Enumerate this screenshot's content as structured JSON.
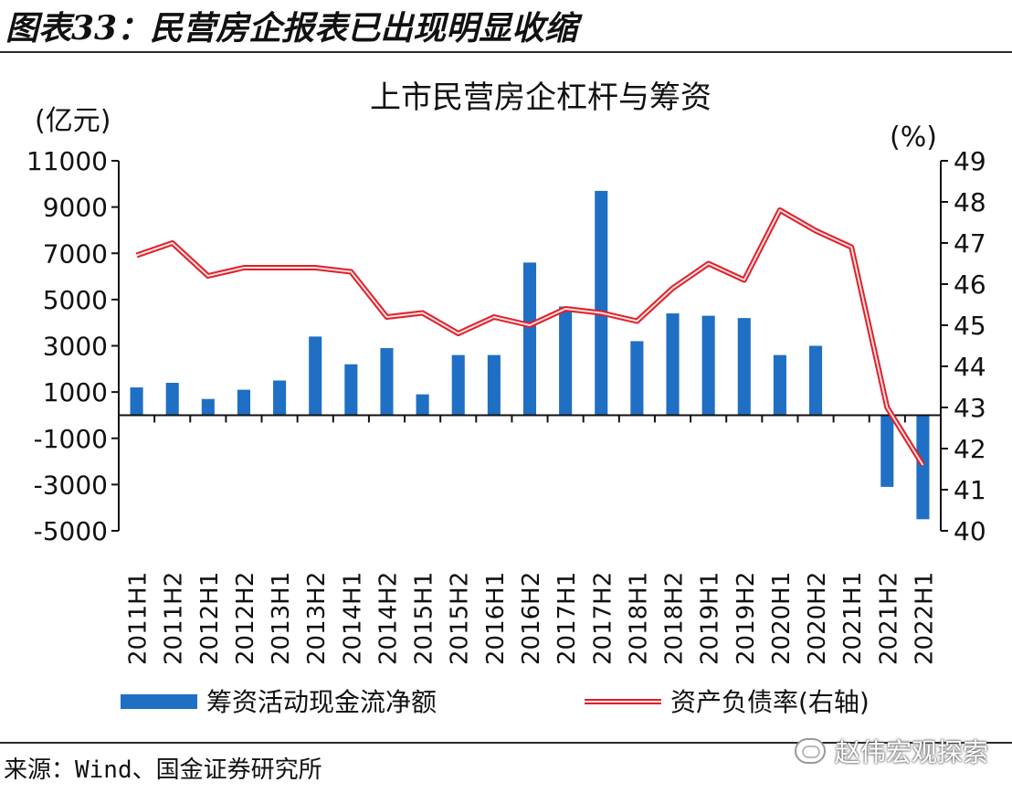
{
  "figure": {
    "title": "图表33：民营房企报表已出现明显收缩",
    "source": "来源：Wind、国金证券研究所",
    "watermark": "赵伟宏观探索"
  },
  "chart_data": {
    "type": "bar",
    "title": "上市民营房企杠杆与筹资",
    "left_axis_label": "(亿元)",
    "right_axis_label": "(%)",
    "ylim": [
      -5000,
      11000
    ],
    "yticks": [
      -5000,
      -3000,
      -1000,
      1000,
      3000,
      5000,
      7000,
      9000,
      11000
    ],
    "y2lim": [
      40,
      49
    ],
    "y2ticks": [
      40,
      41,
      42,
      43,
      44,
      45,
      46,
      47,
      48,
      49
    ],
    "categories": [
      "2011H1",
      "2011H2",
      "2012H1",
      "2012H2",
      "2013H1",
      "2013H2",
      "2014H1",
      "2014H2",
      "2015H1",
      "2015H2",
      "2016H1",
      "2016H2",
      "2017H1",
      "2017H2",
      "2018H1",
      "2018H2",
      "2019H1",
      "2019H2",
      "2020H1",
      "2020H2",
      "2021H1",
      "2021H2",
      "2022H1"
    ],
    "series": [
      {
        "name": "筹资活动现金流净额",
        "type": "bar",
        "axis": "left",
        "color": "#1f6fc4",
        "values": [
          1200,
          1400,
          700,
          1100,
          1500,
          3400,
          2200,
          2900,
          900,
          2600,
          2600,
          6600,
          4700,
          9700,
          3200,
          4400,
          4300,
          4200,
          2600,
          3000,
          0,
          -3100,
          -4500
        ]
      },
      {
        "name": "资产负债率(右轴)",
        "type": "line",
        "axis": "right",
        "color": "#e0202a",
        "values": [
          46.7,
          47.0,
          46.2,
          46.4,
          46.4,
          46.4,
          46.3,
          45.2,
          45.3,
          44.8,
          45.2,
          45.0,
          45.4,
          45.3,
          45.1,
          45.9,
          46.5,
          46.1,
          47.8,
          47.3,
          46.9,
          43.0,
          41.6
        ]
      }
    ],
    "grid": false,
    "legend_position": "bottom"
  }
}
